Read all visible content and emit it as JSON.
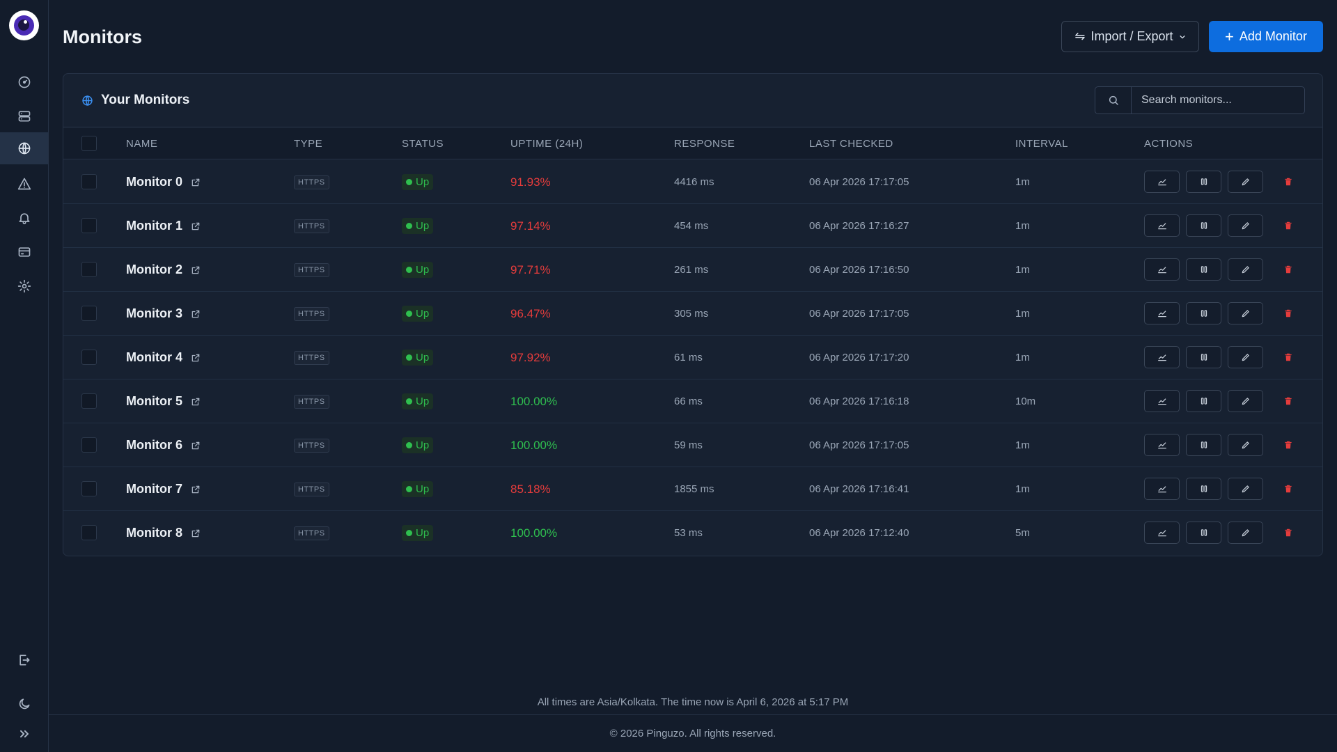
{
  "sidebar": {
    "items": [
      {
        "name": "dashboard",
        "icon": "gauge-icon",
        "active": false
      },
      {
        "name": "servers",
        "icon": "server-icon",
        "active": false
      },
      {
        "name": "monitors",
        "icon": "globe-icon",
        "active": true
      },
      {
        "name": "incidents",
        "icon": "alert-triangle-icon",
        "active": false
      },
      {
        "name": "notifications",
        "icon": "bell-icon",
        "active": false
      },
      {
        "name": "billing",
        "icon": "card-icon",
        "active": false
      },
      {
        "name": "settings",
        "icon": "gear-icon",
        "active": false
      }
    ],
    "bottom": [
      {
        "name": "logout",
        "icon": "logout-icon"
      },
      {
        "name": "theme",
        "icon": "moon-icon"
      },
      {
        "name": "expand",
        "icon": "chevrons-right-icon"
      }
    ]
  },
  "header": {
    "title": "Monitors",
    "import_export_label": "Import / Export",
    "add_monitor_label": "Add Monitor"
  },
  "card": {
    "title": "Your Monitors",
    "search_placeholder": "Search monitors..."
  },
  "table": {
    "columns": [
      "NAME",
      "TYPE",
      "STATUS",
      "UPTIME (24H)",
      "RESPONSE",
      "LAST CHECKED",
      "INTERVAL",
      "ACTIONS"
    ],
    "rows": [
      {
        "name": "Monitor 0",
        "type": "HTTPS",
        "status": "Up",
        "uptime": "91.93%",
        "response": "4416 ms",
        "last_checked": "06 Apr 2026 17:17:05",
        "interval": "1m"
      },
      {
        "name": "Monitor 1",
        "type": "HTTPS",
        "status": "Up",
        "uptime": "97.14%",
        "response": "454 ms",
        "last_checked": "06 Apr 2026 17:16:27",
        "interval": "1m"
      },
      {
        "name": "Monitor 2",
        "type": "HTTPS",
        "status": "Up",
        "uptime": "97.71%",
        "response": "261 ms",
        "last_checked": "06 Apr 2026 17:16:50",
        "interval": "1m"
      },
      {
        "name": "Monitor 3",
        "type": "HTTPS",
        "status": "Up",
        "uptime": "96.47%",
        "response": "305 ms",
        "last_checked": "06 Apr 2026 17:17:05",
        "interval": "1m"
      },
      {
        "name": "Monitor 4",
        "type": "HTTPS",
        "status": "Up",
        "uptime": "97.92%",
        "response": "61 ms",
        "last_checked": "06 Apr 2026 17:17:20",
        "interval": "1m"
      },
      {
        "name": "Monitor 5",
        "type": "HTTPS",
        "status": "Up",
        "uptime": "100.00%",
        "response": "66 ms",
        "last_checked": "06 Apr 2026 17:16:18",
        "interval": "10m"
      },
      {
        "name": "Monitor 6",
        "type": "HTTPS",
        "status": "Up",
        "uptime": "100.00%",
        "response": "59 ms",
        "last_checked": "06 Apr 2026 17:17:05",
        "interval": "1m"
      },
      {
        "name": "Monitor 7",
        "type": "HTTPS",
        "status": "Up",
        "uptime": "85.18%",
        "response": "1855 ms",
        "last_checked": "06 Apr 2026 17:16:41",
        "interval": "1m"
      },
      {
        "name": "Monitor 8",
        "type": "HTTPS",
        "status": "Up",
        "uptime": "100.00%",
        "response": "53 ms",
        "last_checked": "06 Apr 2026 17:12:40",
        "interval": "5m"
      }
    ]
  },
  "colors": {
    "uptime_good": "#2fbf4f",
    "uptime_bad": "#e53c3c",
    "accent": "#0d6ddf"
  },
  "footer": {
    "timezone_note": "All times are Asia/Kolkata. The time now is April 6, 2026 at 5:17 PM",
    "copyright": "© 2026 Pinguzo. All rights reserved."
  }
}
